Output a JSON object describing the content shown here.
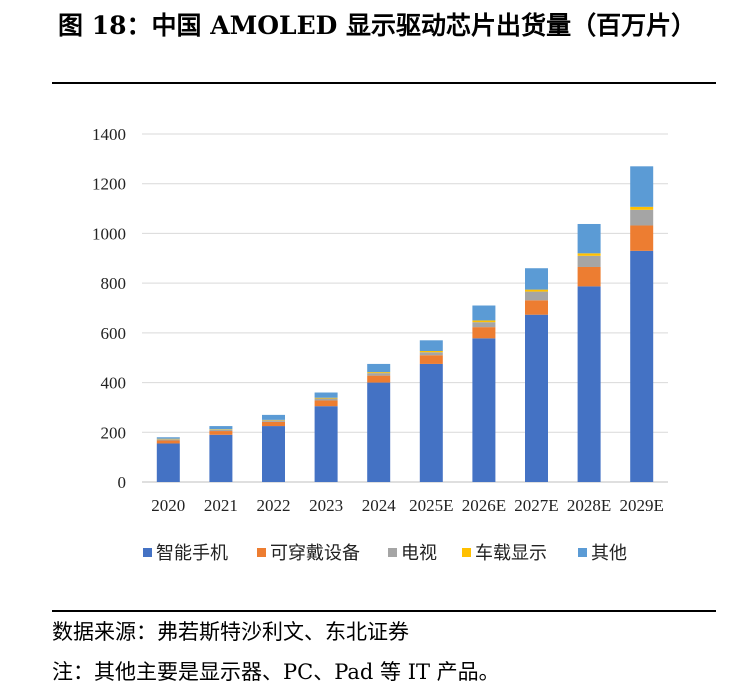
{
  "figure": {
    "title": "图 18：中国 AMOLED 显示驱动芯片出货量（百万片）"
  },
  "footer": {
    "source": "数据来源：弗若斯特沙利文、东北证券",
    "note": "注：其他主要是显示器、PC、Pad 等 IT 产品。"
  },
  "chart_data": {
    "type": "bar",
    "stacked": true,
    "categories": [
      "2020",
      "2021",
      "2022",
      "2023",
      "2024",
      "2025E",
      "2026E",
      "2027E",
      "2028E",
      "2029E"
    ],
    "ylim": [
      0,
      1400
    ],
    "yticks": [
      0,
      200,
      400,
      600,
      800,
      1000,
      1200,
      1400
    ],
    "grid": true,
    "legend_position": "bottom",
    "series": [
      {
        "name": "智能手机",
        "color": "#4472C4",
        "values": [
          155,
          190,
          225,
          305,
          400,
          475,
          578,
          673,
          787,
          930
        ]
      },
      {
        "name": "可穿戴设备",
        "color": "#ED7D31",
        "values": [
          12,
          15,
          17,
          23,
          28,
          35,
          45,
          58,
          78,
          102
        ]
      },
      {
        "name": "电视",
        "color": "#A5A5A5",
        "values": [
          5,
          5,
          6,
          8,
          10,
          12,
          20,
          35,
          45,
          63
        ]
      },
      {
        "name": "车载显示",
        "color": "#FFC000",
        "values": [
          2,
          2,
          2,
          3,
          4,
          5,
          7,
          8,
          10,
          12
        ]
      },
      {
        "name": "其他",
        "color": "#5B9BD5",
        "values": [
          6,
          13,
          20,
          21,
          33,
          43,
          60,
          86,
          118,
          163
        ]
      }
    ]
  }
}
